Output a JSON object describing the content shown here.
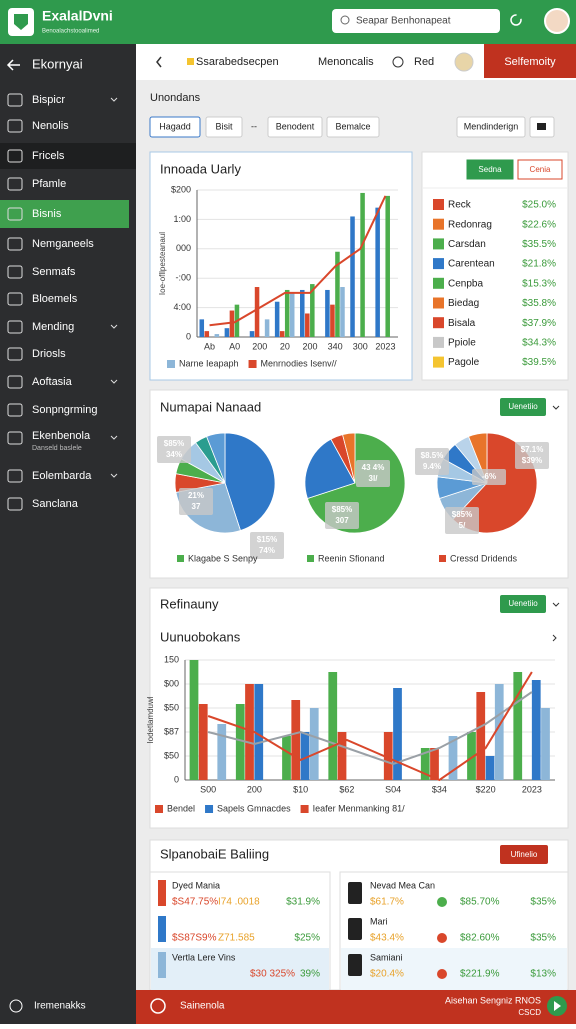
{
  "app": {
    "brand": "ExalalDvni",
    "tagline": "Benoalachstooalimed",
    "search": "Seapar Benhonapeat"
  },
  "sidebar": {
    "title": "Ekornyai",
    "items": [
      {
        "label": "Bispicr",
        "expandable": true
      },
      {
        "label": "Nenolis"
      },
      {
        "label": "Fricels",
        "highlight": true
      },
      {
        "label": "Pfamle"
      },
      {
        "label": "Bisnis",
        "active": true
      },
      {
        "label": "Nemganeels"
      },
      {
        "label": "Senmafs"
      },
      {
        "label": "Bloemels"
      },
      {
        "label": "Mending",
        "expandable": true
      },
      {
        "label": "Driosls"
      },
      {
        "label": "Aoftasia",
        "expandable": true
      },
      {
        "label": "Sonpngrming"
      },
      {
        "label": "Ekenbenola",
        "sub": "Danseld baslele",
        "expandable": true
      },
      {
        "label": "Eolembarda",
        "expandable": true
      },
      {
        "label": "Sanclana"
      }
    ]
  },
  "header": {
    "breadcrumb": "Ssarabedsecpen",
    "menu": "Menoncalis",
    "status": "Red",
    "action": "Selfemoity"
  },
  "section_title": "Unondans",
  "filters": [
    "Hagadd",
    "Bisit",
    "--",
    "Benodent",
    "Bemalce"
  ],
  "filter_right": "Mendinderign",
  "trend_chart": {
    "type": "bar",
    "title": "Innoada Uarly",
    "ylabel": "Ioe-ofllpesteanaul",
    "grid": true,
    "ylim": [
      0,
      250
    ],
    "yticks": [
      {
        "value": 250,
        "label": "$200"
      },
      {
        "value": 200,
        "label": "1:00"
      },
      {
        "value": 150,
        "label": "000"
      },
      {
        "value": 100,
        "label": "-:00"
      },
      {
        "value": 50,
        "label": "4:00"
      },
      0
    ],
    "categories": [
      "Ab",
      "A0",
      "200",
      "20",
      "200",
      "340",
      "300",
      "2023"
    ],
    "series": [
      {
        "color": "#2f78c8",
        "values": [
          30,
          15,
          10,
          60,
          80,
          80,
          205,
          220
        ]
      },
      {
        "color": "#d9472b",
        "values": [
          10,
          45,
          85,
          10,
          40,
          55,
          0,
          0
        ]
      },
      {
        "color": "#4cae4c",
        "values": [
          0,
          55,
          0,
          80,
          90,
          145,
          245,
          240
        ]
      },
      {
        "name": "Narne Ieapaph",
        "color": "#8db6d8",
        "values": [
          5,
          0,
          30,
          75,
          0,
          85,
          0,
          0
        ]
      },
      {
        "name": "Menrnodies Isenv//",
        "type": "line",
        "color": "#d9472b",
        "values": [
          20,
          25,
          50,
          75,
          75,
          120,
          150,
          240
        ]
      }
    ]
  },
  "ranking": {
    "buttons": [
      "Sedna",
      "Cenia"
    ],
    "rows": [
      {
        "name": "Reck",
        "color": "#d9472b",
        "value": "$25.0%"
      },
      {
        "name": "Redonrag",
        "color": "#e8742a",
        "value": "$22.6%"
      },
      {
        "name": "Carsdan",
        "color": "#4cae4c",
        "value": "$35.5%"
      },
      {
        "name": "Carentean",
        "color": "#2f78c8",
        "value": "$21.8%"
      },
      {
        "name": "Cenpba",
        "color": "#4cae4c",
        "value": "$15.3%"
      },
      {
        "name": "Biedag",
        "color": "#e8742a",
        "value": "$35.8%"
      },
      {
        "name": "Bisala",
        "color": "#d9472b",
        "value": "$37.9%"
      },
      {
        "name": "Ppiole",
        "color": "#c8c8c8",
        "value": "$34.3%"
      },
      {
        "name": "Pagole",
        "color": "#f4c430",
        "value": "$39.5%"
      }
    ]
  },
  "pies": {
    "title": "Numapai Nanaad",
    "button": "Uenetiio",
    "charts": [
      {
        "type": "pie",
        "values": [
          45,
          27,
          6,
          5,
          7,
          4,
          6
        ],
        "colors": [
          "#2f78c8",
          "#8db6d8",
          "#d9472b",
          "#4cae4c",
          "#a5c8e4",
          "#2a9d8f",
          "#5b9bd5"
        ],
        "legend": "Klagabe S Senpy",
        "legend_color": "#4cae4c",
        "callouts": [
          {
            "lines": [
              "$85%",
              "34%"
            ]
          },
          {
            "lines": [
              "21%",
              "37"
            ]
          },
          {
            "lines": [
              "$15%",
              "74%"
            ]
          }
        ]
      },
      {
        "type": "pie",
        "values": [
          70,
          22,
          4,
          4
        ],
        "colors": [
          "#4cae4c",
          "#2f78c8",
          "#d9472b",
          "#e8742a"
        ],
        "legend": "Reenin Sfionand",
        "legend_color": "#4cae4c",
        "callouts": [
          {
            "lines": [
              "43 4%",
              "3I/"
            ]
          },
          {
            "lines": [
              "$85%",
              "307"
            ]
          }
        ]
      },
      {
        "type": "pie",
        "values": [
          62,
          8,
          7,
          6,
          6,
          5,
          6
        ],
        "colors": [
          "#d9472b",
          "#8db6d8",
          "#5b9bd5",
          "#a5c8e4",
          "#2f78c8",
          "#b9d3ea",
          "#e8742a"
        ],
        "legend": "Cressd Dridends",
        "legend_color": "#d9472b",
        "callouts": [
          {
            "lines": [
              "$8.5%",
              "9.4%"
            ]
          },
          {
            "lines": [
              "$7.1%",
              "$39%"
            ]
          },
          {
            "lines": [
              "-6%"
            ]
          },
          {
            "lines": [
              "$85%",
              "5/"
            ]
          }
        ]
      }
    ]
  },
  "revenue": {
    "title": "Refinauny",
    "button": "Uenetiio",
    "chart": {
      "type": "bar",
      "title": "Uunuobokans",
      "ylabel": "Iodetlamduwl",
      "grid": true,
      "ylim": [
        0,
        150
      ],
      "yticks": [
        150,
        {
          "value": 120,
          "label": "$00"
        },
        {
          "value": 90,
          "label": "$50"
        },
        {
          "value": 60,
          "label": "$87"
        },
        {
          "value": 30,
          "label": "$50"
        },
        0
      ],
      "categories": [
        "S00",
        "200",
        "$10",
        "$62",
        "S04",
        "$34",
        "$220",
        "2023"
      ],
      "series": [
        {
          "color": "#4cae4c",
          "values": [
            150,
            95,
            55,
            135,
            0,
            40,
            60,
            135
          ]
        },
        {
          "name": "Bendel",
          "color": "#d9472b",
          "values": [
            95,
            120,
            100,
            60,
            60,
            40,
            110,
            0
          ]
        },
        {
          "name": "Sapels Gmnacdes",
          "color": "#2f78c8",
          "values": [
            0,
            120,
            60,
            0,
            115,
            0,
            30,
            125
          ]
        },
        {
          "color": "#8db6d8",
          "values": [
            70,
            0,
            90,
            0,
            0,
            55,
            120,
            90
          ]
        },
        {
          "type": "line",
          "color": "#9aa0a6",
          "values": [
            60,
            45,
            60,
            40,
            20,
            40,
            70,
            110
          ]
        },
        {
          "name": "Ieafer Menmanking 81/",
          "type": "line",
          "color": "#d9472b",
          "values": [
            80,
            60,
            25,
            50,
            25,
            0,
            40,
            135
          ]
        }
      ]
    }
  },
  "billing": {
    "title": "SlpanobaiE Baliing",
    "button": "Ufinelio",
    "left": [
      {
        "name": "Dyed Mania",
        "values": [
          "$S47.75%",
          "I74 .0018",
          "$31.9%"
        ]
      },
      {
        "values": [
          "$S87S9%",
          "Z71.585",
          "$25%"
        ]
      },
      {
        "name": "Vertla Lere Vins",
        "values": [
          "$30 325%",
          "39%"
        ]
      }
    ],
    "right": [
      {
        "name": "Nevad Mea Can",
        "values": [
          "$61.7%",
          "$85.70%",
          "$35%"
        ]
      },
      {
        "name": "Mari",
        "values": [
          "$43.4%",
          "$82.60%",
          "$35%"
        ]
      },
      {
        "name": "Samiani",
        "values": [
          "$20.4%",
          "$221.9%",
          "$13%"
        ]
      }
    ]
  },
  "footer": {
    "left": "Iremenakks",
    "alert": "Sainenola",
    "status": "Aisehan Sengniz RNOS",
    "code": "CSCD"
  }
}
